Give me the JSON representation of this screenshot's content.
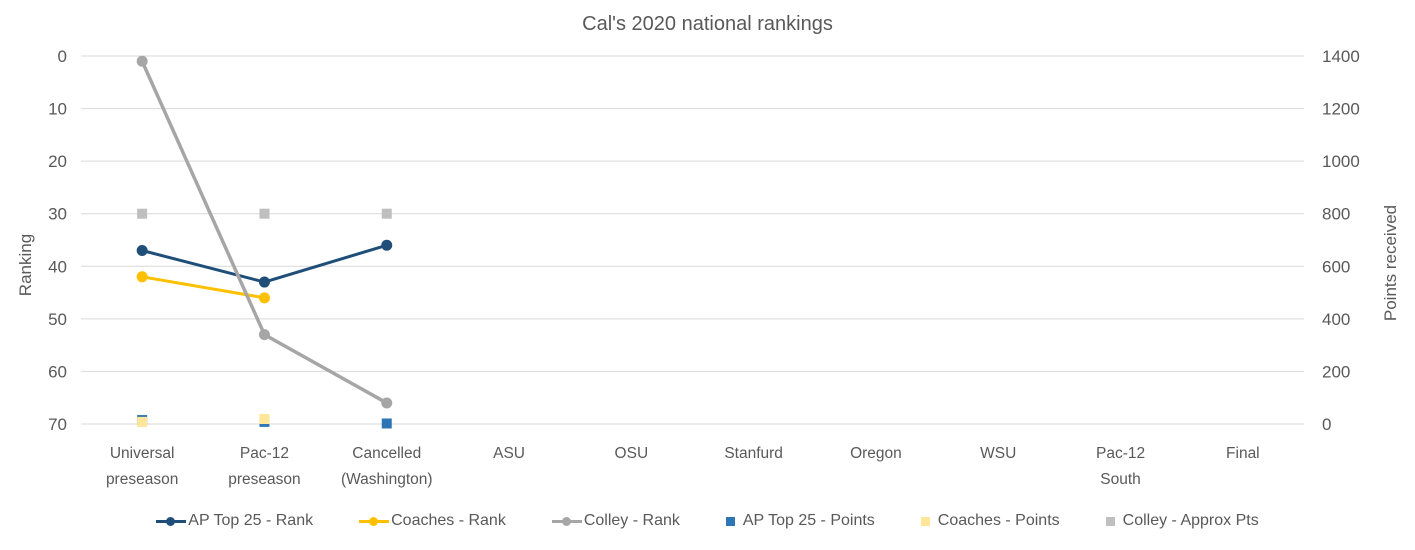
{
  "chart_data": {
    "type": "line",
    "title": "Cal's 2020 national rankings",
    "categories": [
      "Universal\npreseason",
      "Pac-12\npreseason",
      "Cancelled\n(Washington)",
      "ASU",
      "OSU",
      "Stanfurd",
      "Oregon",
      "WSU",
      "Pac-12\nSouth",
      "Final"
    ],
    "left_axis": {
      "label": "Ranking",
      "min": 0,
      "max": 70,
      "step": 10,
      "inverted": true,
      "ticks": [
        0,
        10,
        20,
        30,
        40,
        50,
        60,
        70
      ]
    },
    "right_axis": {
      "label": "Points received",
      "min": 0,
      "max": 1400,
      "step": 200,
      "ticks": [
        0,
        200,
        400,
        600,
        800,
        1000,
        1200,
        1400
      ]
    },
    "grid": true,
    "legend_position": "bottom",
    "series": [
      {
        "name": "AP Top 25 - Rank",
        "axis": "left",
        "style": "line",
        "marker": "circle",
        "color": "#1F4E79",
        "width": 3,
        "values": [
          37,
          43,
          36,
          null,
          null,
          null,
          null,
          null,
          null,
          null
        ]
      },
      {
        "name": "Coaches - Rank",
        "axis": "left",
        "style": "line",
        "marker": "circle",
        "color": "#FFC000",
        "width": 3,
        "values": [
          42,
          46,
          null,
          null,
          null,
          null,
          null,
          null,
          null,
          null
        ]
      },
      {
        "name": "Colley - Rank",
        "axis": "left",
        "style": "line",
        "marker": "circle",
        "color": "#A6A6A6",
        "width": 3.5,
        "values": [
          1,
          53,
          66,
          null,
          null,
          null,
          null,
          null,
          null,
          null
        ]
      },
      {
        "name": "AP Top 25 - Points",
        "axis": "right",
        "style": "scatter",
        "marker": "square",
        "color": "#2E75B6",
        "values": [
          15,
          8,
          2,
          null,
          null,
          null,
          null,
          null,
          null,
          null
        ]
      },
      {
        "name": "Coaches - Points",
        "axis": "right",
        "style": "scatter",
        "marker": "square",
        "color": "#FFE699",
        "values": [
          8,
          19,
          null,
          null,
          null,
          null,
          null,
          null,
          null,
          null
        ]
      },
      {
        "name": "Colley - Approx Pts",
        "axis": "right",
        "style": "scatter",
        "marker": "square",
        "color": "#BFBFBF",
        "values": [
          800,
          800,
          800,
          null,
          null,
          null,
          null,
          null,
          null,
          null
        ]
      }
    ],
    "colors": {
      "gridline": "#D9D9D9",
      "text": "#595959",
      "background": "#FFFFFF"
    }
  }
}
